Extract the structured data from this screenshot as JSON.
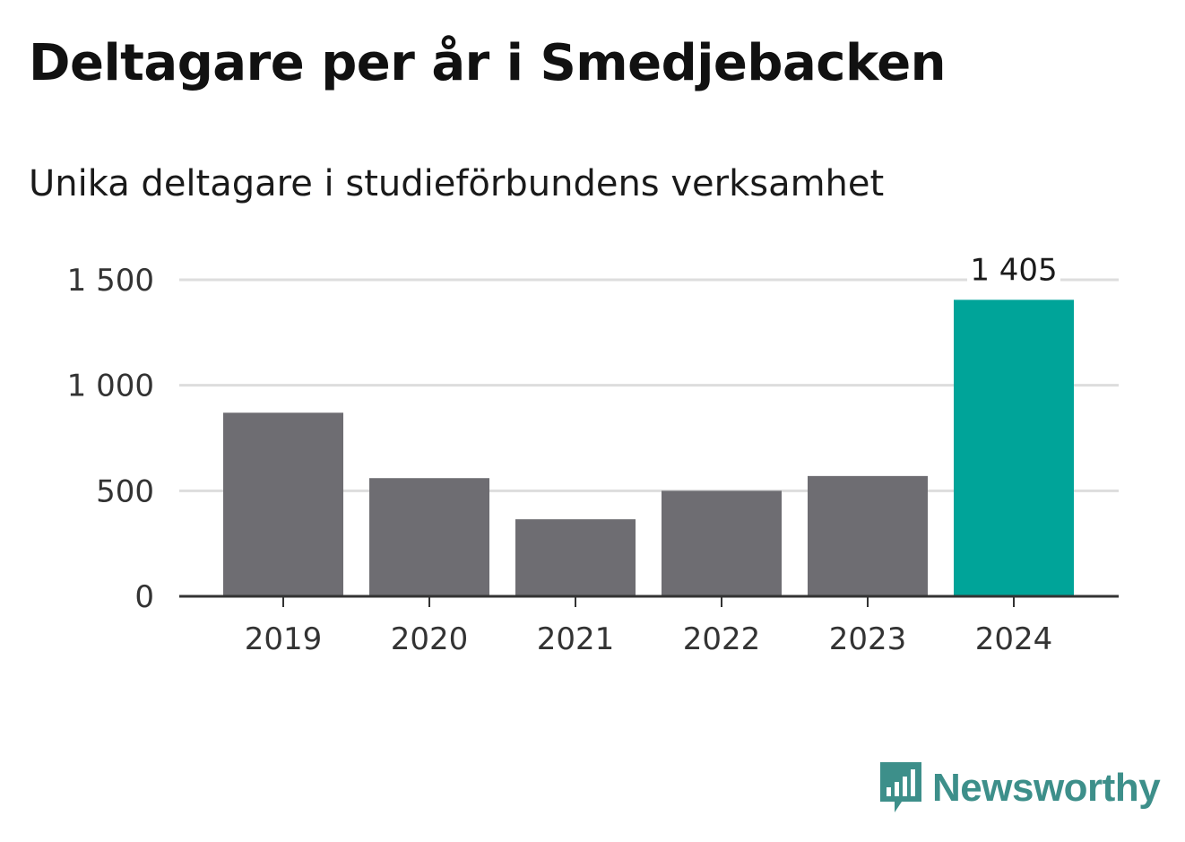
{
  "chart_data": {
    "type": "bar",
    "title": "Deltagare per år i Smedjebacken",
    "subtitle": "Unika deltagare i studieförbundens verksamhet",
    "categories": [
      "2019",
      "2020",
      "2021",
      "2022",
      "2023",
      "2024"
    ],
    "values": [
      870,
      560,
      365,
      500,
      570,
      1405
    ],
    "value_labels": [
      null,
      null,
      null,
      null,
      null,
      "1 405"
    ],
    "ylim": [
      0,
      1500
    ],
    "yticks": [
      0,
      500,
      1000,
      1500
    ],
    "ytick_labels": [
      "0",
      "500",
      "1 000",
      "1 500"
    ],
    "grid": true,
    "colors": {
      "bar": "#6e6d72",
      "highlight": "#00a499",
      "grid": "#dddddd",
      "axis": "#333333"
    },
    "highlight_index": 5
  },
  "logo": {
    "text": "Newsworthy",
    "icon": "newsworthy-logo-icon",
    "color": "#3d8f8a"
  }
}
